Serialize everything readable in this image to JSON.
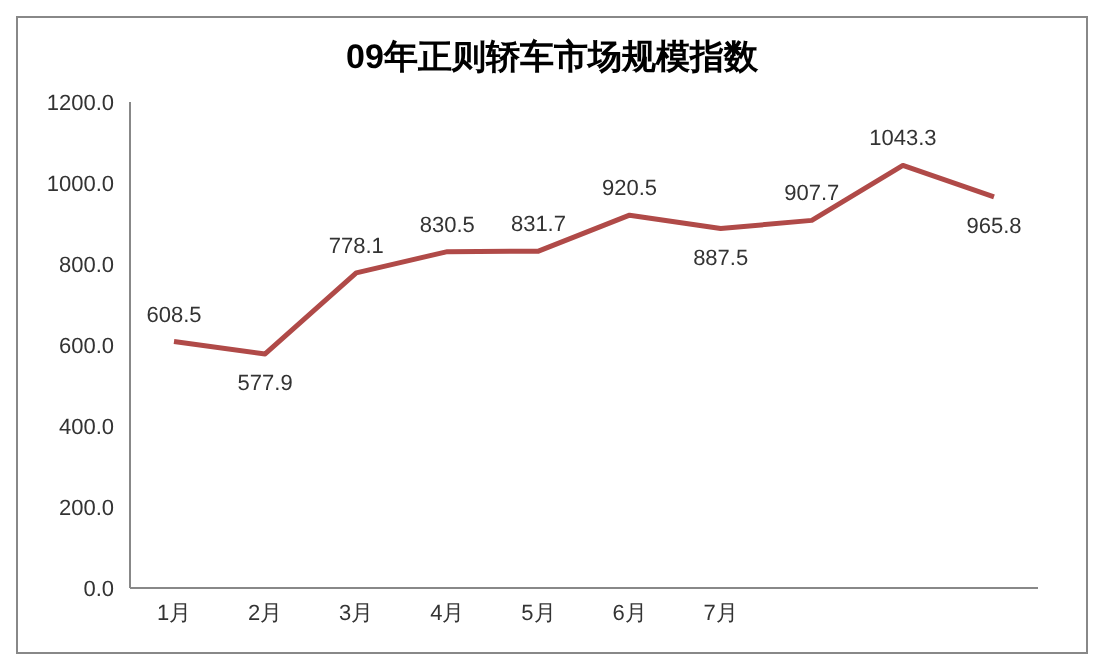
{
  "chart_data": {
    "type": "line",
    "title": "09年正则轿车市场规模指数",
    "categories": [
      "1月",
      "2月",
      "3月",
      "4月",
      "5月",
      "6月",
      "7月",
      null,
      null,
      null
    ],
    "series": [
      {
        "color": "#b04a48",
        "values": [
          608.5,
          577.9,
          778.1,
          830.5,
          831.7,
          920.5,
          887.5,
          907.7,
          1043.3,
          965.8
        ]
      }
    ],
    "ylim": [
      0,
      1200
    ],
    "yticks": [
      {
        "value": 0,
        "label": "0.0"
      },
      {
        "value": 200,
        "label": "200.0"
      },
      {
        "value": 400,
        "label": "400.0"
      },
      {
        "value": 600,
        "label": "600.0"
      },
      {
        "value": 800,
        "label": "800.0"
      },
      {
        "value": 1000,
        "label": "1000.0"
      },
      {
        "value": 1200,
        "label": "1200.0"
      }
    ],
    "data_labels": true,
    "marker": "none",
    "line_style": "solid",
    "grid": false
  }
}
